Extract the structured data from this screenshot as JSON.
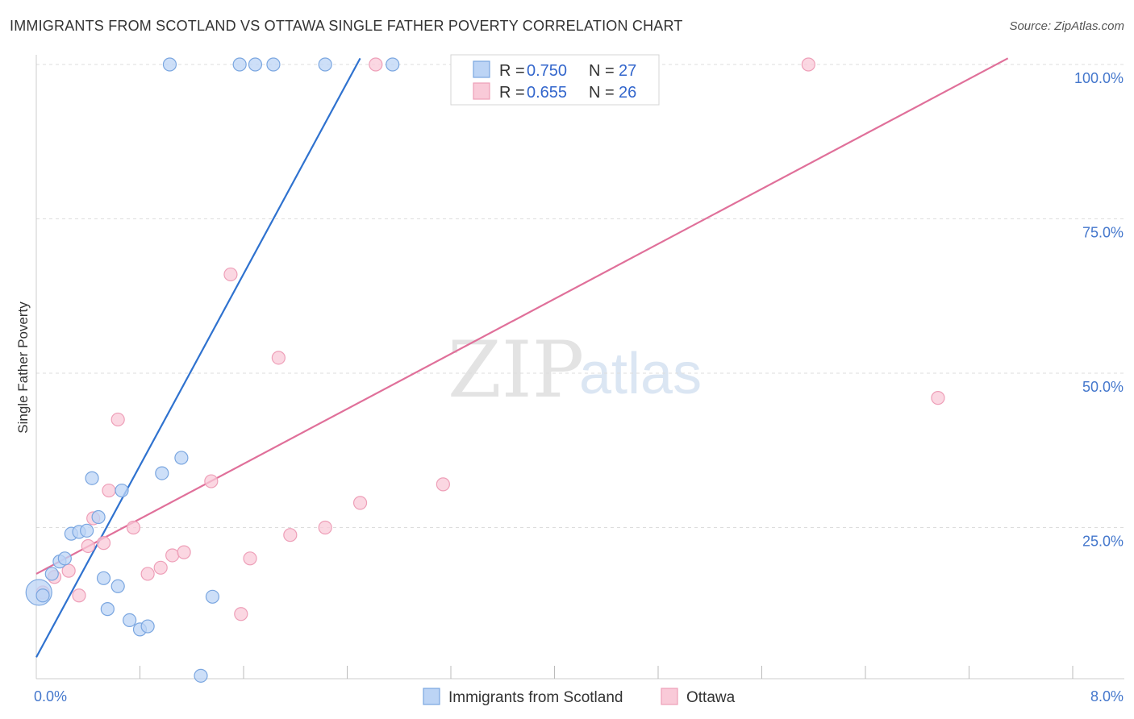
{
  "title": "IMMIGRANTS FROM SCOTLAND VS OTTAWA SINGLE FATHER POVERTY CORRELATION CHART",
  "source": "Source: ZipAtlas.com",
  "watermark": {
    "zip": "ZIP",
    "atlas": "atlas"
  },
  "colors": {
    "blue_fill": "#bcd4f5",
    "blue_stroke": "#7aa6e0",
    "blue_line": "#2f72cf",
    "pink_fill": "#f9cad8",
    "pink_stroke": "#ee9fb8",
    "pink_line": "#e0709a",
    "grid": "#dddddd",
    "tick_text": "#4477cc"
  },
  "chart_data": {
    "type": "scatter",
    "title": "IMMIGRANTS FROM SCOTLAND VS OTTAWA SINGLE FATHER POVERTY CORRELATION CHART",
    "xlabel": "",
    "ylabel": "Single Father Poverty",
    "xlim": [
      0,
      8
    ],
    "ylim": [
      0,
      102
    ],
    "x_tick_labels": [
      {
        "value": 0,
        "label": "0.0%"
      },
      {
        "value": 8,
        "label": "8.0%"
      }
    ],
    "y_tick_labels": [
      {
        "value": 25,
        "label": "25.0%"
      },
      {
        "value": 50,
        "label": "50.0%"
      },
      {
        "value": 75,
        "label": "75.0%"
      },
      {
        "value": 100,
        "label": "100.0%"
      }
    ],
    "x_minor_ticks": [
      0.8,
      1.6,
      2.4,
      3.2,
      4.0,
      4.8,
      5.6,
      6.4,
      7.2,
      8.0
    ],
    "grid": true,
    "legend_position": "top-center",
    "series": [
      {
        "name": "Immigrants from Scotland",
        "color": "blue",
        "R": "0.750",
        "N": "27",
        "trend": {
          "x0": 0,
          "y0": 4,
          "x1": 2.5,
          "y1": 101
        },
        "points": [
          {
            "x": 0.02,
            "y": 14.5,
            "big": true
          },
          {
            "x": 0.05,
            "y": 14.0
          },
          {
            "x": 0.12,
            "y": 17.5
          },
          {
            "x": 0.18,
            "y": 19.5
          },
          {
            "x": 0.22,
            "y": 20.0
          },
          {
            "x": 0.27,
            "y": 24.0
          },
          {
            "x": 0.33,
            "y": 24.3
          },
          {
            "x": 0.39,
            "y": 24.5
          },
          {
            "x": 0.43,
            "y": 33.0
          },
          {
            "x": 0.48,
            "y": 26.7
          },
          {
            "x": 0.52,
            "y": 16.8
          },
          {
            "x": 0.55,
            "y": 11.8
          },
          {
            "x": 0.63,
            "y": 15.5
          },
          {
            "x": 0.66,
            "y": 31.0
          },
          {
            "x": 0.72,
            "y": 10.0
          },
          {
            "x": 0.8,
            "y": 8.5
          },
          {
            "x": 0.86,
            "y": 9.0
          },
          {
            "x": 0.97,
            "y": 33.8
          },
          {
            "x": 1.03,
            "y": 100.0
          },
          {
            "x": 1.12,
            "y": 36.3
          },
          {
            "x": 1.27,
            "y": 1.0
          },
          {
            "x": 1.36,
            "y": 13.8
          },
          {
            "x": 1.57,
            "y": 100.0
          },
          {
            "x": 1.69,
            "y": 100.0
          },
          {
            "x": 1.83,
            "y": 100.0
          },
          {
            "x": 2.23,
            "y": 100.0
          },
          {
            "x": 2.75,
            "y": 100.0
          }
        ]
      },
      {
        "name": "Ottawa",
        "color": "pink",
        "R": "0.655",
        "N": "26",
        "trend": {
          "x0": 0,
          "y0": 17.5,
          "x1": 7.5,
          "y1": 101
        },
        "points": [
          {
            "x": 0.05,
            "y": 14.5
          },
          {
            "x": 0.14,
            "y": 17.0
          },
          {
            "x": 0.25,
            "y": 18.0
          },
          {
            "x": 0.33,
            "y": 14.0
          },
          {
            "x": 0.44,
            "y": 26.5
          },
          {
            "x": 0.56,
            "y": 31.0
          },
          {
            "x": 0.63,
            "y": 42.5
          },
          {
            "x": 0.75,
            "y": 25.0
          },
          {
            "x": 0.86,
            "y": 17.5
          },
          {
            "x": 0.96,
            "y": 18.5
          },
          {
            "x": 1.05,
            "y": 20.5
          },
          {
            "x": 1.14,
            "y": 21.0
          },
          {
            "x": 1.35,
            "y": 32.5
          },
          {
            "x": 1.5,
            "y": 66.0
          },
          {
            "x": 1.58,
            "y": 11.0
          },
          {
            "x": 1.65,
            "y": 20.0
          },
          {
            "x": 1.87,
            "y": 52.5
          },
          {
            "x": 1.96,
            "y": 23.8
          },
          {
            "x": 2.23,
            "y": 25.0
          },
          {
            "x": 2.5,
            "y": 29.0
          },
          {
            "x": 2.62,
            "y": 100.0
          },
          {
            "x": 3.14,
            "y": 32.0
          },
          {
            "x": 5.96,
            "y": 100.0
          },
          {
            "x": 6.96,
            "y": 46.0
          },
          {
            "x": 0.52,
            "y": 22.5
          },
          {
            "x": 0.4,
            "y": 22.0
          }
        ]
      }
    ]
  }
}
